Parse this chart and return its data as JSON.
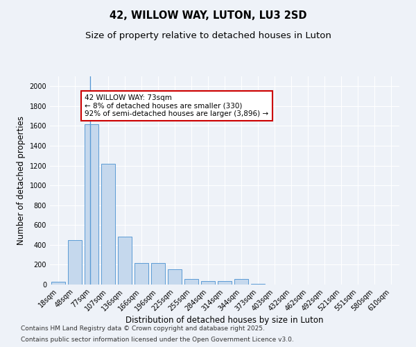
{
  "title": "42, WILLOW WAY, LUTON, LU3 2SD",
  "subtitle": "Size of property relative to detached houses in Luton",
  "xlabel": "Distribution of detached houses by size in Luton",
  "ylabel": "Number of detached properties",
  "categories": [
    "18sqm",
    "48sqm",
    "77sqm",
    "107sqm",
    "136sqm",
    "166sqm",
    "196sqm",
    "225sqm",
    "255sqm",
    "284sqm",
    "314sqm",
    "344sqm",
    "373sqm",
    "403sqm",
    "432sqm",
    "462sqm",
    "492sqm",
    "521sqm",
    "551sqm",
    "580sqm",
    "610sqm"
  ],
  "values": [
    30,
    450,
    1620,
    1220,
    480,
    215,
    215,
    155,
    55,
    35,
    35,
    55,
    5,
    3,
    2,
    2,
    1,
    1,
    1,
    1,
    1
  ],
  "bar_color": "#c5d8ed",
  "bar_edge_color": "#5b9bd5",
  "property_line_bar_index": 2,
  "annotation_text": "42 WILLOW WAY: 73sqm\n← 8% of detached houses are smaller (330)\n92% of semi-detached houses are larger (3,896) →",
  "annotation_box_color": "#ffffff",
  "annotation_box_edge_color": "#cc0000",
  "ylim": [
    0,
    2100
  ],
  "yticks": [
    0,
    200,
    400,
    600,
    800,
    1000,
    1200,
    1400,
    1600,
    1800,
    2000
  ],
  "background_color": "#eef2f8",
  "grid_color": "#ffffff",
  "footer_line1": "Contains HM Land Registry data © Crown copyright and database right 2025.",
  "footer_line2": "Contains public sector information licensed under the Open Government Licence v3.0.",
  "title_fontsize": 10.5,
  "subtitle_fontsize": 9.5,
  "axis_label_fontsize": 8.5,
  "tick_fontsize": 7,
  "annotation_fontsize": 7.5,
  "footer_fontsize": 6.5
}
